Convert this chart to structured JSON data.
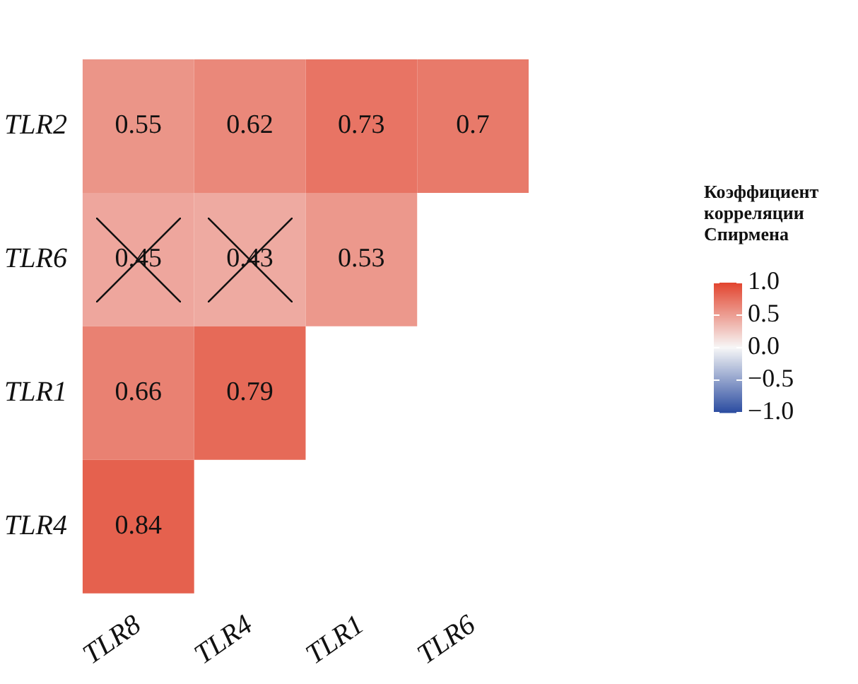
{
  "chart_data": {
    "type": "heatmap",
    "clabel": "Коэффициент корреляции Спирмена",
    "categories": [
      "TLR8",
      "TLR4",
      "TLR1",
      "TLR6"
    ],
    "y_categories": [
      "TLR2",
      "TLR6",
      "TLR1",
      "TLR4"
    ],
    "cells": [
      [
        0.55,
        0.62,
        0.73,
        0.7
      ],
      [
        0.45,
        0.43,
        0.53,
        null
      ],
      [
        0.66,
        0.79,
        null,
        null
      ],
      [
        0.84,
        null,
        null,
        null
      ]
    ],
    "data_labels": true,
    "clim": [
      -1,
      1
    ],
    "cticks": [
      {
        "value": 1,
        "label": "1.0"
      },
      {
        "value": 0.5,
        "label": "0.5"
      },
      {
        "value": 0,
        "label": "0.0"
      },
      {
        "value": -0.5,
        "label": "−0.5"
      },
      {
        "value": -1,
        "label": "−1.0"
      }
    ]
  }
}
